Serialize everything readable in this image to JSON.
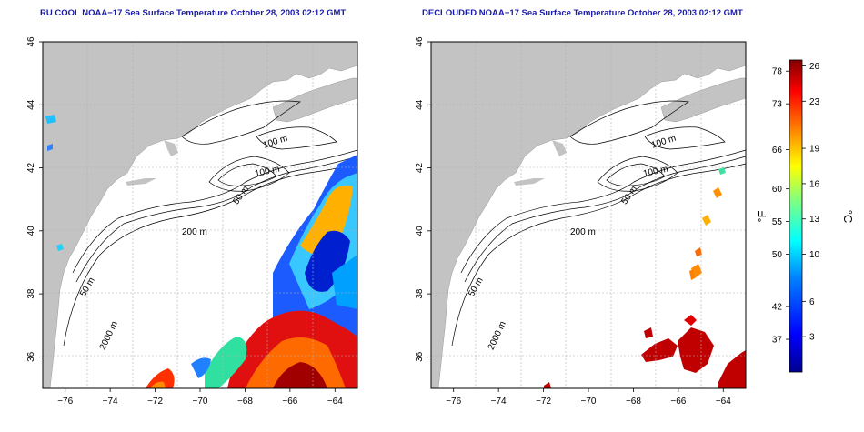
{
  "panels": [
    {
      "title": "RU COOL NOAA−17 Sea Surface Temperature October 28, 2003 02:12 GMT"
    },
    {
      "title": "DECLOUDED NOAA−17 Sea Surface Temperature October 28, 2003 02:12 GMT"
    }
  ],
  "axes": {
    "lat_ticks": [
      "36",
      "38",
      "40",
      "42",
      "44",
      "46"
    ],
    "lon_ticks": [
      "−76",
      "−74",
      "−72",
      "−70",
      "−68",
      "−66",
      "−64"
    ],
    "lat_range": [
      35,
      46
    ],
    "lon_range": [
      -77,
      -63
    ]
  },
  "contour_labels": {
    "m100_a": "100 m",
    "m100_b": "100 m",
    "m50_a": "50 m",
    "m50_b": "50 m",
    "m200": "200 m",
    "m2000": "2000 m"
  },
  "colorbar": {
    "unit_f": "°F",
    "unit_c": "°C",
    "fahrenheit_ticks": [
      "78",
      "73",
      "66",
      "60",
      "55",
      "50",
      "42",
      "37"
    ],
    "celsius_ticks": [
      "26",
      "23",
      "19",
      "16",
      "13",
      "10",
      "6",
      "3"
    ],
    "celsius_range": [
      0,
      26.5
    ],
    "colors": [
      "#00008f",
      "#0000ff",
      "#0080ff",
      "#00ffff",
      "#80ff80",
      "#ffff00",
      "#ff8000",
      "#ff0000",
      "#800000"
    ]
  },
  "colors": {
    "land": "#c3c3c3",
    "ocean": "#ffffff",
    "contour": "#000000",
    "title": "#1a1aa8"
  }
}
